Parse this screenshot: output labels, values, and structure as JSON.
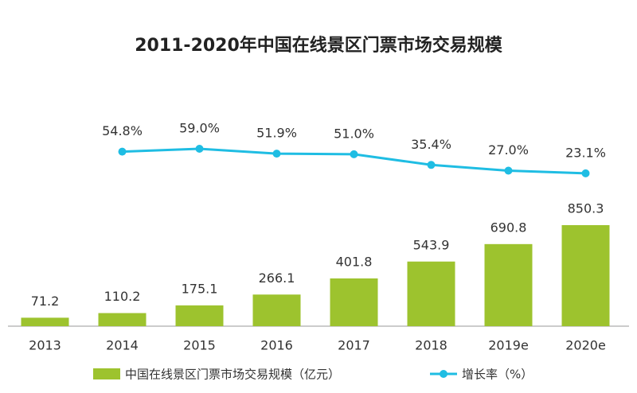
{
  "chart_data": {
    "type": "bar",
    "title": "2011-2020年中国在线景区门票市场交易规模",
    "categories": [
      "2013",
      "2014",
      "2015",
      "2016",
      "2017",
      "2018",
      "2019e",
      "2020e"
    ],
    "series": [
      {
        "name": "中国在线景区门票市场交易规模（亿元）",
        "type": "bar",
        "color": "#9dc32e",
        "values": [
          71.2,
          110.2,
          175.1,
          266.1,
          401.8,
          543.9,
          690.8,
          850.3
        ]
      },
      {
        "name": "增长率（%）",
        "type": "line",
        "color": "#1fbde3",
        "values": [
          null,
          54.8,
          59.0,
          51.9,
          51.0,
          35.4,
          27.0,
          23.1
        ],
        "value_labels": [
          null,
          "54.8%",
          "59.0%",
          "51.9%",
          "51.0%",
          "35.4%",
          "27.0%",
          "23.1%"
        ]
      }
    ],
    "legend": "bottom"
  }
}
